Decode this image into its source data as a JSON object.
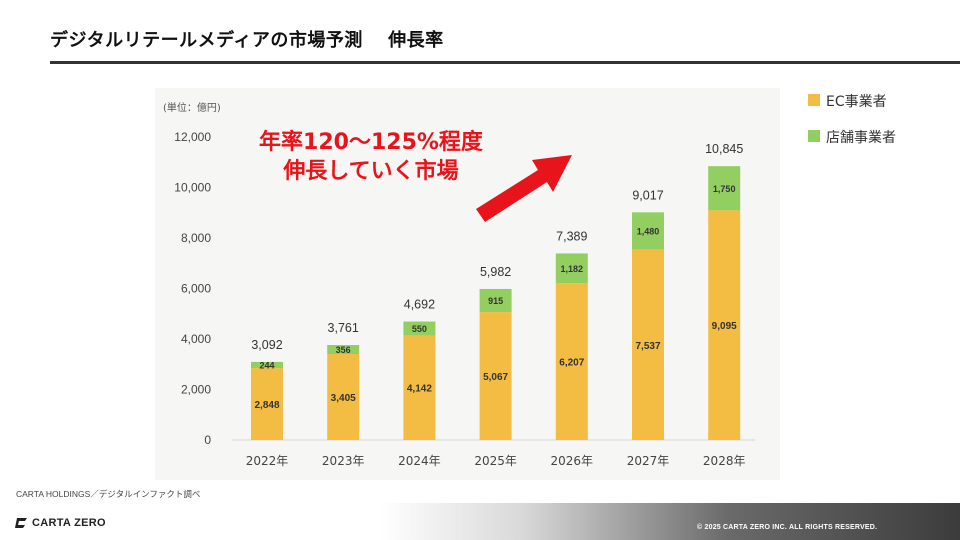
{
  "header": {
    "title": "デジタルリテールメディアの市場予測　 伸長率"
  },
  "headline": {
    "line1": "年率120～125%程度",
    "line2": "伸長していく市場"
  },
  "footer": {
    "source": "CARTA HOLDINGS／デジタルインファクト調べ",
    "logo_text": "CARTA ZERO",
    "copyright": "© 2025 CARTA ZERO INC.  ALL RIGHTS RESERVED."
  },
  "colors": {
    "ec": "#f2bd42",
    "store": "#92cf60",
    "arrow": "#e8141b",
    "panel": "#f6f6f4"
  },
  "chart_data": {
    "type": "bar",
    "stacked": true,
    "unit_label": "(単位：億円)",
    "categories": [
      "2022年",
      "2023年",
      "2024年",
      "2025年",
      "2026年",
      "2027年",
      "2028年"
    ],
    "series": [
      {
        "name": "EC事業者",
        "values": [
          2848,
          3405,
          4142,
          5067,
          6207,
          7537,
          9095
        ]
      },
      {
        "name": "店舗事業者",
        "values": [
          244,
          356,
          550,
          915,
          1182,
          1480,
          1750
        ]
      }
    ],
    "totals": [
      3092,
      3761,
      4692,
      5982,
      7389,
      9017,
      10845
    ],
    "ylim": [
      0,
      12000
    ],
    "yticks": [
      "0",
      "2,000",
      "4,000",
      "6,000",
      "8,000",
      "10,000",
      "12,000"
    ],
    "legend_position": "top-right",
    "grid": false
  }
}
